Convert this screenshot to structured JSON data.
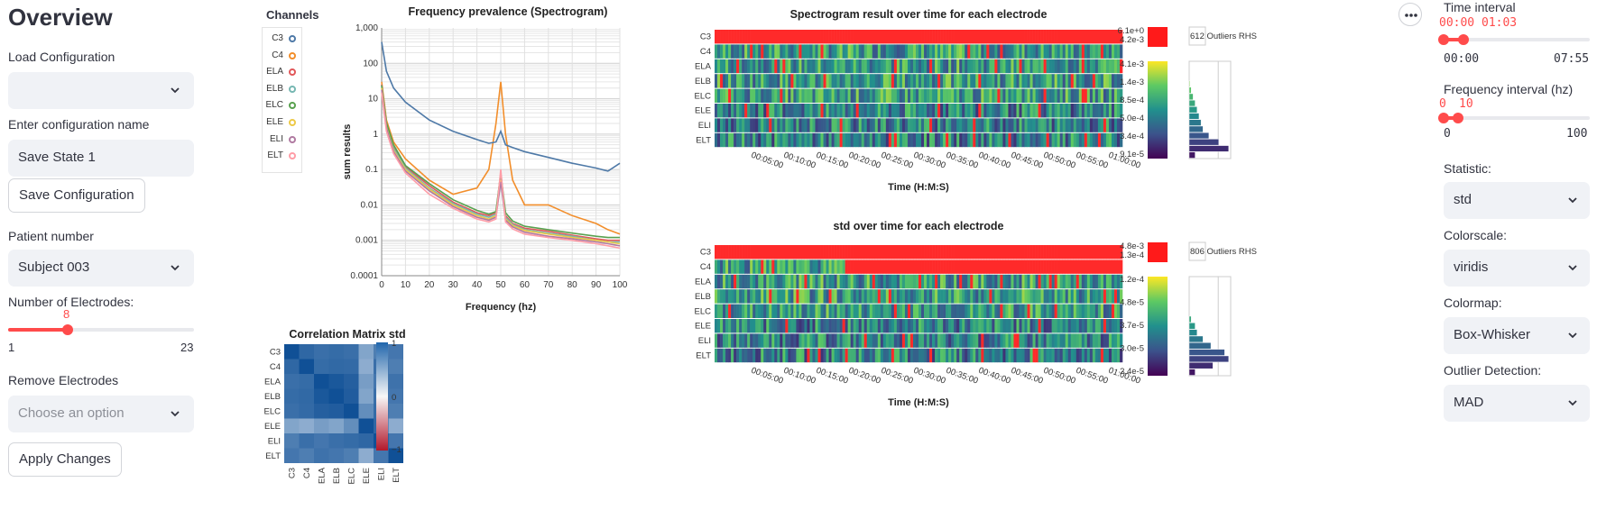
{
  "sidebar": {
    "title": "Overview",
    "load_config_label": "Load Configuration",
    "load_config_value": "",
    "config_name_label": "Enter configuration name",
    "config_name_value": "Save State 1",
    "save_config_button": "Save Configuration",
    "patient_label": "Patient number",
    "patient_value": "Subject 003",
    "electrodes_label": "Number of Electrodes:",
    "electrodes_value": "8",
    "electrodes_min": "1",
    "electrodes_max": "23",
    "electrodes_fraction": 0.318,
    "remove_label": "Remove Electrodes",
    "remove_placeholder": "Choose an option",
    "apply_button": "Apply Changes"
  },
  "controls": {
    "time_label": "Time interval",
    "time_start": "00:00",
    "time_end": "01:03",
    "time_min": "00:00",
    "time_max": "07:55",
    "freq_label": "Frequency interval (hz)",
    "freq_start": "0",
    "freq_end": "10",
    "freq_min": "0",
    "freq_max": "100",
    "statistic_label": "Statistic:",
    "statistic_value": "std",
    "colorscale_label": "Colorscale:",
    "colorscale_value": "viridis",
    "colormap_label": "Colormap:",
    "colormap_value": "Box-Whisker",
    "outlier_label": "Outlier Detection:",
    "outlier_value": "MAD"
  },
  "icons": {
    "chevron": "chevron-down-icon",
    "menu": "more-horizontal-icon"
  },
  "colors": {
    "accent": "#ff4b4b",
    "outlier": "#ff1a1a"
  },
  "legend": {
    "title": "Channels",
    "items": [
      {
        "name": "C3",
        "color": "#4e79a7"
      },
      {
        "name": "C4",
        "color": "#f28e2b"
      },
      {
        "name": "ELA",
        "color": "#e15759"
      },
      {
        "name": "ELB",
        "color": "#76b7b2"
      },
      {
        "name": "ELC",
        "color": "#59a14f"
      },
      {
        "name": "ELE",
        "color": "#edc948"
      },
      {
        "name": "ELI",
        "color": "#b07aa1"
      },
      {
        "name": "ELT",
        "color": "#ff9da7"
      }
    ]
  },
  "chart_data": [
    {
      "type": "line",
      "title": "Frequency prevalence (Spectrogram)",
      "xlabel": "Frequency (hz)",
      "ylabel": "sum results",
      "yscale": "log",
      "xlim": [
        0,
        100
      ],
      "ylim": [
        0.0001,
        1000
      ],
      "xticks": [
        "0",
        "10",
        "20",
        "30",
        "40",
        "50",
        "60",
        "70",
        "80",
        "90",
        "100"
      ],
      "yticks": [
        "1,000",
        "100",
        "10",
        "1",
        "0.1",
        "0.01",
        "0.001",
        "0.0001"
      ],
      "x": [
        0,
        2,
        5,
        10,
        20,
        30,
        40,
        45,
        48,
        50,
        52,
        55,
        60,
        70,
        80,
        90,
        95,
        100
      ],
      "series": [
        {
          "name": "C3",
          "values": [
            400,
            60,
            20,
            8,
            2.5,
            1.2,
            0.7,
            0.55,
            0.6,
            1.2,
            0.5,
            0.42,
            0.32,
            0.22,
            0.15,
            0.11,
            0.09,
            0.15
          ]
        },
        {
          "name": "C4",
          "values": [
            30,
            2.5,
            0.6,
            0.2,
            0.05,
            0.02,
            0.03,
            0.1,
            2,
            30,
            1,
            0.05,
            0.01,
            0.01,
            0.005,
            0.003,
            0.002,
            0.0015
          ]
        },
        {
          "name": "ELA",
          "values": [
            25,
            2,
            0.45,
            0.12,
            0.035,
            0.012,
            0.006,
            0.005,
            0.006,
            0.07,
            0.005,
            0.003,
            0.0022,
            0.0018,
            0.0014,
            0.0011,
            0.001,
            0.001
          ]
        },
        {
          "name": "ELB",
          "values": [
            22,
            1.8,
            0.4,
            0.11,
            0.03,
            0.011,
            0.0055,
            0.0045,
            0.0055,
            0.06,
            0.0045,
            0.0028,
            0.002,
            0.0016,
            0.0013,
            0.001,
            0.0009,
            0.0009
          ]
        },
        {
          "name": "ELC",
          "values": [
            24,
            2.1,
            0.5,
            0.13,
            0.04,
            0.014,
            0.007,
            0.0055,
            0.0065,
            0.08,
            0.006,
            0.0035,
            0.0025,
            0.002,
            0.0016,
            0.0013,
            0.0012,
            0.0012
          ]
        },
        {
          "name": "ELE",
          "values": [
            20,
            1.6,
            0.35,
            0.1,
            0.028,
            0.01,
            0.005,
            0.004,
            0.005,
            0.05,
            0.004,
            0.0026,
            0.0019,
            0.0015,
            0.0012,
            0.001,
            0.0009,
            0.0008
          ]
        },
        {
          "name": "ELI",
          "values": [
            18,
            1.5,
            0.32,
            0.09,
            0.025,
            0.009,
            0.0045,
            0.0037,
            0.0045,
            0.045,
            0.0037,
            0.0024,
            0.0017,
            0.0013,
            0.0011,
            0.0009,
            0.0008,
            0.0007
          ]
        },
        {
          "name": "ELT",
          "values": [
            15,
            1.2,
            0.28,
            0.08,
            0.02,
            0.008,
            0.004,
            0.0033,
            0.004,
            0.1,
            0.0033,
            0.0021,
            0.0015,
            0.0012,
            0.001,
            0.0008,
            0.0007,
            0.0006
          ]
        }
      ]
    },
    {
      "type": "heatmap",
      "title": "Spectrogram result over time for each electrode",
      "xlabel": "Time (H:M:S)",
      "rows": [
        "C3",
        "C4",
        "ELA",
        "ELB",
        "ELC",
        "ELE",
        "ELI",
        "ELT"
      ],
      "xticks": [
        "00:05:00",
        "00:10:00",
        "00:15:00",
        "00:20:00",
        "00:25:00",
        "00:30:00",
        "00:35:00",
        "00:40:00",
        "00:45:00",
        "00:50:00",
        "00:55:00",
        "01:00:00"
      ],
      "outlier_high": "6.1e+0",
      "outlier_low": "4.2e-3",
      "outlier_text": "612 Outliers RHS",
      "colorbar_ticks": [
        "4.1e-3",
        "1.4e-3",
        "8.5e-4",
        "5.0e-4",
        "3.4e-4",
        "9.1e-5"
      ]
    },
    {
      "type": "heatmap",
      "title": "std over time for each electrode",
      "xlabel": "Time (H:M:S)",
      "rows": [
        "C3",
        "C4",
        "ELA",
        "ELB",
        "ELC",
        "ELE",
        "ELI",
        "ELT"
      ],
      "xticks": [
        "00:05:00",
        "00:10:00",
        "00:15:00",
        "00:20:00",
        "00:25:00",
        "00:30:00",
        "00:35:00",
        "00:40:00",
        "00:45:00",
        "00:50:00",
        "00:55:00",
        "01:00:00"
      ],
      "outlier_high": "4.8e-3",
      "outlier_low": "1.3e-4",
      "outlier_text": "806 Outliers RHS",
      "colorbar_ticks": [
        "1.2e-4",
        "4.8e-5",
        "3.7e-5",
        "3.0e-5",
        "2.4e-5"
      ]
    },
    {
      "type": "heatmap",
      "title": "Correlation Matrix std",
      "labels": [
        "C3",
        "C4",
        "ELA",
        "ELB",
        "ELC",
        "ELE",
        "ELI",
        "ELT"
      ],
      "colorbar_ticks": [
        "1",
        "0",
        "−1"
      ],
      "values": [
        [
          1.0,
          0.85,
          0.8,
          0.82,
          0.8,
          0.45,
          0.7,
          0.75
        ],
        [
          0.85,
          1.0,
          0.82,
          0.84,
          0.83,
          0.4,
          0.8,
          0.7
        ],
        [
          0.8,
          0.82,
          1.0,
          0.95,
          0.9,
          0.5,
          0.75,
          0.78
        ],
        [
          0.82,
          0.84,
          0.95,
          1.0,
          0.92,
          0.45,
          0.8,
          0.75
        ],
        [
          0.8,
          0.83,
          0.9,
          0.92,
          1.0,
          0.6,
          0.82,
          0.7
        ],
        [
          0.45,
          0.4,
          0.5,
          0.45,
          0.6,
          1.0,
          0.85,
          0.4
        ],
        [
          0.7,
          0.8,
          0.75,
          0.8,
          0.82,
          0.85,
          1.0,
          0.75
        ],
        [
          0.75,
          0.7,
          0.78,
          0.75,
          0.7,
          0.4,
          0.75,
          1.0
        ]
      ]
    }
  ]
}
